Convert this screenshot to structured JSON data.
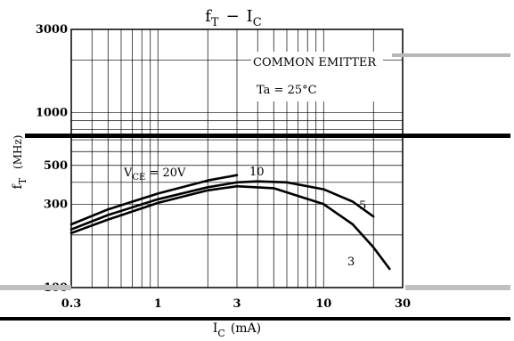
{
  "chart_data": {
    "type": "line",
    "title_main": "f",
    "title_sub": "T",
    "title_dash": "−",
    "title_i": "I",
    "title_i_sub": "C",
    "xlabel_main": "I",
    "xlabel_sub": "C",
    "xlabel_unit": "(mA)",
    "ylabel_main": "f",
    "ylabel_sub": "T",
    "ylabel_unit": "(MHz)",
    "x_scale": "log",
    "y_scale": "log",
    "xlim": [
      0.3,
      30
    ],
    "ylim": [
      100,
      3000
    ],
    "x_tick_labels": [
      "0.3",
      "1",
      "3",
      "10",
      "30"
    ],
    "y_tick_labels": [
      "100",
      "300",
      "500",
      "1000",
      "3000"
    ],
    "grid": true,
    "annotations": {
      "common_emitter": "COMMON EMITTER",
      "ta": "Ta = 25°C",
      "vce_main": "V",
      "vce_sub": "CE",
      "vce_value": " = 20V"
    },
    "series": [
      {
        "name": "10",
        "x": [
          0.3,
          0.5,
          1,
          2,
          3
        ],
        "y": [
          230,
          280,
          345,
          410,
          440
        ]
      },
      {
        "name": "5",
        "x": [
          0.3,
          0.5,
          1,
          2,
          3,
          4,
          6,
          10,
          15,
          20
        ],
        "y": [
          215,
          260,
          320,
          375,
          400,
          405,
          400,
          365,
          310,
          255
        ]
      },
      {
        "name": "3",
        "x": [
          0.3,
          0.5,
          1,
          2,
          3,
          5,
          10,
          15,
          20,
          25
        ],
        "y": [
          205,
          245,
          305,
          360,
          380,
          370,
          300,
          230,
          170,
          128
        ]
      }
    ]
  }
}
